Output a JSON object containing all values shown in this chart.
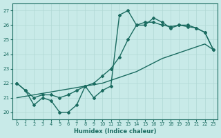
{
  "xlabel": "Humidex (Indice chaleur)",
  "xlim": [
    -0.5,
    23.5
  ],
  "ylim": [
    19.5,
    27.5
  ],
  "xticks": [
    0,
    1,
    2,
    3,
    4,
    5,
    6,
    7,
    8,
    9,
    10,
    11,
    12,
    13,
    14,
    15,
    16,
    17,
    18,
    19,
    20,
    21,
    22,
    23
  ],
  "yticks": [
    20,
    21,
    22,
    23,
    24,
    25,
    26,
    27
  ],
  "background_color": "#c8eae8",
  "grid_color": "#b0d8d4",
  "line_color": "#1a6b60",
  "line_width": 1.0,
  "marker": "D",
  "marker_size": 2.0,
  "series_jagged": [
    22,
    21.5,
    20.5,
    21.0,
    20.8,
    20.0,
    20.0,
    20.5,
    21.8,
    21.0,
    21.5,
    21.8,
    26.7,
    27.0,
    26.0,
    26.0,
    26.5,
    26.2,
    25.8,
    26.0,
    26.0,
    25.8,
    25.5,
    24.3
  ],
  "series_smooth": [
    22,
    21.5,
    21.0,
    21.2,
    21.2,
    21.0,
    21.2,
    21.5,
    21.8,
    22.0,
    22.5,
    23.0,
    23.8,
    25.0,
    26.0,
    26.2,
    26.2,
    26.0,
    25.9,
    26.0,
    25.9,
    25.8,
    25.5,
    24.3
  ],
  "series_linear": [
    21.0,
    21.1,
    21.2,
    21.3,
    21.4,
    21.5,
    21.6,
    21.7,
    21.8,
    21.9,
    22.0,
    22.2,
    22.4,
    22.6,
    22.8,
    23.1,
    23.4,
    23.7,
    23.9,
    24.1,
    24.3,
    24.5,
    24.7,
    24.3
  ]
}
